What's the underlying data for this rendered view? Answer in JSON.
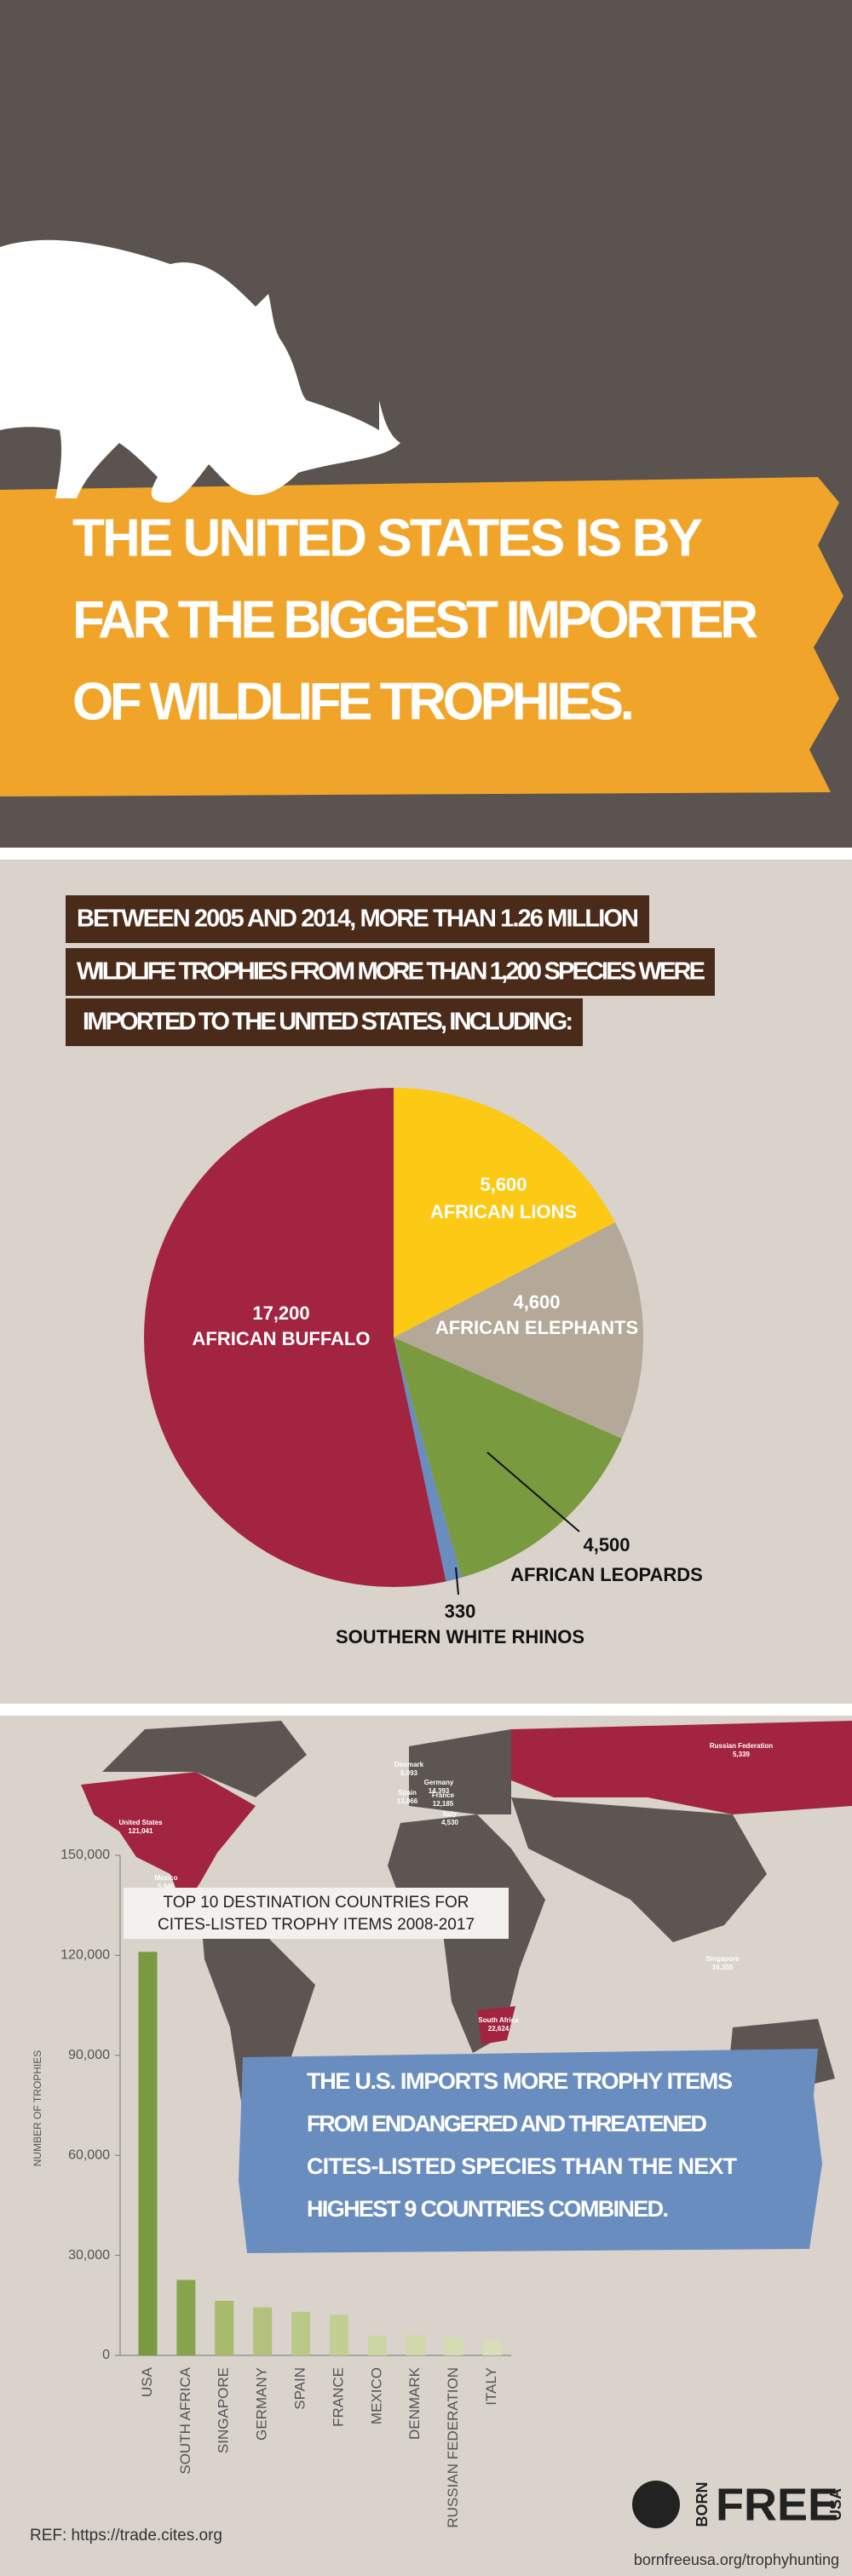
{
  "header": {
    "title_lines": [
      "THE UNITED STATES IS BY",
      "FAR THE BIGGEST IMPORTER",
      "OF WILDLIFE TROPHIES."
    ]
  },
  "intro": {
    "lines": [
      "BETWEEN 2005 AND 2014, MORE THAN 1.26 MILLION",
      "WILDLIFE TROPHIES FROM MORE THAN 1,200 SPECIES WERE",
      "IMPORTED TO THE UNITED STATES, INCLUDING:"
    ]
  },
  "chart_data": [
    {
      "type": "pie",
      "categories": [
        "AFRICAN LIONS",
        "AFRICAN ELEPHANTS",
        "AFRICAN LEOPARDS",
        "SOUTHERN WHITE RHINOS",
        "AFRICAN BUFFALO"
      ],
      "values": [
        5600,
        4600,
        4500,
        330,
        17200
      ],
      "value_labels": [
        "5,600",
        "4,600",
        "4,500",
        "330",
        "17,200"
      ],
      "colors": [
        "#fcc914",
        "#b4a898",
        "#799a3f",
        "#6a8dc0",
        "#a32441"
      ]
    },
    {
      "type": "bar",
      "title_lines": [
        "TOP 10 DESTINATION COUNTRIES FOR",
        "CITES-LISTED TROPHY ITEMS 2008-2017"
      ],
      "y_label": "NUMBER OF TROPHIES",
      "categories": [
        "USA",
        "SOUTH AFRICA",
        "SINGAPORE",
        "GERMANY",
        "SPAIN",
        "FRANCE",
        "MEXICO",
        "DENMARK",
        "RUSSIAN FEDERATION",
        "ITALY"
      ],
      "values": [
        121041,
        22624,
        16355,
        14393,
        13066,
        12185,
        5946,
        6093,
        5339,
        4530
      ],
      "colors": [
        "#799a3f",
        "#86a44b",
        "#a7bb6d",
        "#b2c27d",
        "#bac987",
        "#c2cf93",
        "#ccd6a4",
        "#d0d9aa",
        "#d4dcb0",
        "#d8dfb8"
      ],
      "ylim": [
        0,
        150000
      ],
      "yticks": [
        0,
        {
          "value": 30000,
          "label": "30,000"
        },
        {
          "value": 60000,
          "label": "60,000"
        },
        {
          "value": 90000,
          "label": "90,000"
        },
        {
          "value": 120000,
          "label": "120,000"
        },
        {
          "value": 150000,
          "label": "150,000"
        }
      ]
    }
  ],
  "map_labels": [
    {
      "name": "United States",
      "value": "121,041"
    },
    {
      "name": "Mexico",
      "value": "5,946"
    },
    {
      "name": "Russian Federation",
      "value": "5,339"
    },
    {
      "name": "Denmark",
      "value": "6,093"
    },
    {
      "name": "Germany",
      "value": "14,393"
    },
    {
      "name": "Spain",
      "value": "13,066"
    },
    {
      "name": "France",
      "value": "12,185"
    },
    {
      "name": "Italy",
      "value": "4,530"
    },
    {
      "name": "South Africa",
      "value": "22,624"
    },
    {
      "name": "Singapore",
      "value": "16,355"
    }
  ],
  "callout": {
    "lines": [
      "THE U.S. IMPORTS MORE TROPHY ITEMS",
      "FROM ENDANGERED AND THREATENED",
      "CITES-LISTED SPECIES THAN THE NEXT",
      "HIGHEST 9 COUNTRIES COMBINED."
    ]
  },
  "footer": {
    "ref": "REF: https://trade.cites.org",
    "logo_born": "BORN",
    "logo_free": "FREE",
    "logo_usa": "USA",
    "url": "bornfreeusa.org/trophyhunting"
  }
}
